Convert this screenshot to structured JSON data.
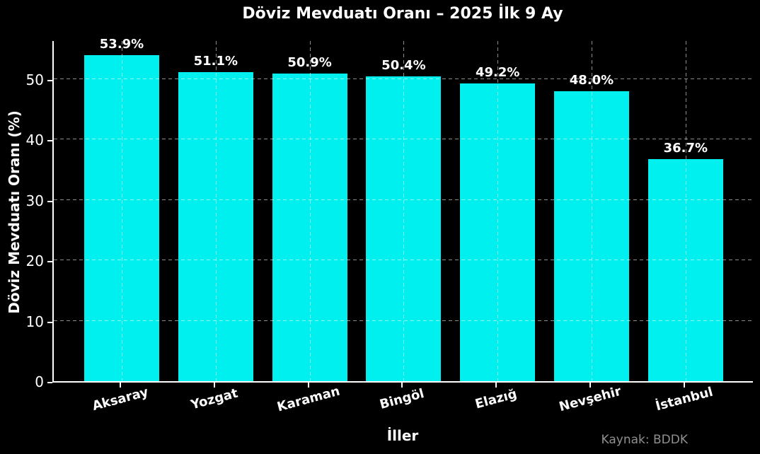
{
  "title": "Döviz Mevduatı Oranı – 2025 İlk 9 Ay",
  "source_note": "Kaynak: BDDK",
  "chart_data": {
    "type": "bar",
    "title": "Döviz Mevduatı Oranı – 2025 İlk 9 Ay",
    "xlabel": "İller",
    "ylabel": "Döviz Mevduatı Oranı (%)",
    "categories": [
      "Aksaray",
      "Yozgat",
      "Karaman",
      "Bingöl",
      "Elazığ",
      "Nevşehir",
      "İstanbul"
    ],
    "values": [
      53.9,
      51.1,
      50.9,
      50.4,
      49.2,
      48.0,
      36.7
    ],
    "bar_labels": [
      "53.9%",
      "51.1%",
      "50.9%",
      "50.4%",
      "49.2%",
      "48.0%",
      "36.7%"
    ],
    "ylim": [
      0,
      56.5
    ],
    "yticks": [
      0,
      10,
      20,
      30,
      40,
      50
    ],
    "ytick_labels": [
      "0",
      "10",
      "20",
      "30",
      "40",
      "50"
    ],
    "grid": true,
    "grid_style": "dashed",
    "legend": false,
    "bar_color": "#00EFEF",
    "background_color": "#000000",
    "text_color": "#FFFFFF",
    "source_color": "#909090"
  }
}
